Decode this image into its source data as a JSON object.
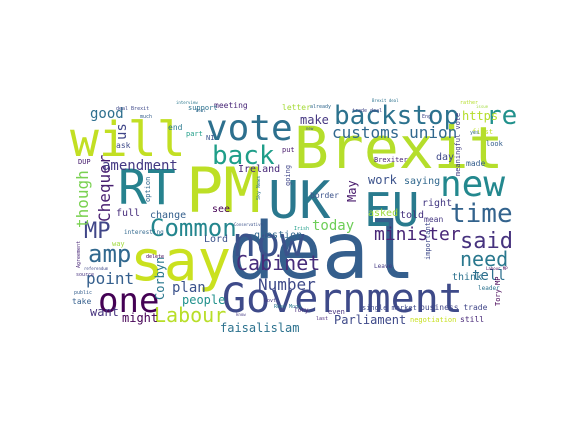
{
  "words": [
    {
      "text": "deal",
      "color": "#355f8d"
    },
    {
      "text": "PM",
      "color": "#bddf26"
    },
    {
      "text": "Brexit",
      "color": "#b5de2b"
    },
    {
      "text": "say",
      "color": "#cae11f"
    },
    {
      "text": "Government",
      "color": "#3e4a89"
    },
    {
      "text": "UK",
      "color": "#2a788e"
    },
    {
      "text": "RT",
      "color": "#26828e"
    },
    {
      "text": "will",
      "color": "#c2df23"
    },
    {
      "text": "now",
      "color": "#3b528b"
    },
    {
      "text": "EU",
      "color": "#297b8e"
    },
    {
      "text": "new",
      "color": "#23888e"
    },
    {
      "text": "vote",
      "color": "#2d708e"
    },
    {
      "text": "one",
      "color": "#440154"
    },
    {
      "text": "backstop",
      "color": "#2c728e"
    },
    {
      "text": "back",
      "color": "#1f9e89"
    },
    {
      "text": "Common",
      "color": "#24868e"
    },
    {
      "text": "time",
      "color": "#33638d"
    },
    {
      "text": "said",
      "color": "#46327e"
    },
    {
      "text": "amp",
      "color": "#31688e"
    },
    {
      "text": "MP",
      "color": "#404688"
    },
    {
      "text": "Cabinet",
      "color": "#472d7b"
    },
    {
      "text": "need",
      "color": "#2a788e"
    },
    {
      "text": "re",
      "color": "#21918c"
    },
    {
      "text": "Labour",
      "color": "#b8de29"
    },
    {
      "text": "customs union",
      "color": "#31688e"
    },
    {
      "text": "Chequer",
      "color": "#481f70"
    },
    {
      "text": "Number",
      "color": "#3e4989"
    },
    {
      "text": "minister",
      "color": "#482677"
    },
    {
      "text": "though",
      "color": "#7ad151"
    },
    {
      "text": "point",
      "color": "#355f8d"
    },
    {
      "text": "amendment",
      "color": "#443983"
    },
    {
      "text": "good",
      "color": "#2e6f8e"
    },
    {
      "text": "tell",
      "color": "#2d708e"
    },
    {
      "text": "today",
      "color": "#6ece58"
    },
    {
      "text": "plan",
      "color": "#3b528b"
    },
    {
      "text": "want",
      "color": "#46327e"
    },
    {
      "text": "might",
      "color": "#440154"
    },
    {
      "text": "people",
      "color": "#21918c"
    },
    {
      "text": "faisalislam",
      "color": "#2c728e"
    },
    {
      "text": "Parliament",
      "color": "#3e4989"
    },
    {
      "text": "us",
      "color": "#404688"
    },
    {
      "text": "Corbyn",
      "color": "#2a788e"
    },
    {
      "text": "May",
      "color": "#481a6c"
    },
    {
      "text": "make",
      "color": "#453781"
    },
    {
      "text": "Ireland",
      "color": "#482878"
    },
    {
      "text": "https",
      "color": "#b5de2b"
    },
    {
      "text": "work",
      "color": "#3b528b"
    },
    {
      "text": "saying",
      "color": "#31688e"
    },
    {
      "text": "think",
      "color": "#2c728e"
    },
    {
      "text": "day",
      "color": "#3e4989"
    },
    {
      "text": "full",
      "color": "#472d7b"
    },
    {
      "text": "change",
      "color": "#355f8d"
    },
    {
      "text": "question",
      "color": "#31688e"
    },
    {
      "text": "Lord",
      "color": "#3b528b"
    },
    {
      "text": "see",
      "color": "#440154"
    },
    {
      "text": "asked",
      "color": "#9fda3a"
    },
    {
      "text": "told",
      "color": "#46327e"
    },
    {
      "text": "right",
      "color": "#443983"
    },
    {
      "text": "business trade",
      "color": "#404688"
    },
    {
      "text": "single market",
      "color": "#3e4989"
    },
    {
      "text": "meeting",
      "color": "#482677"
    },
    {
      "text": "letter",
      "color": "#a5db36"
    },
    {
      "text": "end",
      "color": "#2a788e"
    },
    {
      "text": "mean",
      "color": "#453781"
    },
    {
      "text": "made",
      "color": "#355f8d"
    },
    {
      "text": "meaningful vote",
      "color": "#433e85"
    },
    {
      "text": "take",
      "color": "#355f8d"
    },
    {
      "text": "negotiation",
      "color": "#c8e020"
    },
    {
      "text": "still",
      "color": "#482878"
    },
    {
      "text": "border",
      "color": "#3b528b"
    },
    {
      "text": "going",
      "color": "#404688"
    },
    {
      "text": "option",
      "color": "#31688e"
    },
    {
      "text": "ask",
      "color": "#3e4989"
    },
    {
      "text": "DUP",
      "color": "#481f70"
    },
    {
      "text": "Tory MP",
      "color": "#440154"
    },
    {
      "text": "support",
      "color": "#2c728e"
    },
    {
      "text": "part",
      "color": "#1f9e89"
    },
    {
      "text": "look",
      "color": "#355f8d"
    },
    {
      "text": "even",
      "color": "#46327e"
    },
    {
      "text": "interesting",
      "color": "#31688e"
    },
    {
      "text": "Brexiter",
      "color": "#482677"
    },
    {
      "text": "important",
      "color": "#3e4989"
    },
    {
      "text": "Leave",
      "color": "#443983"
    },
    {
      "text": "Rees Mogg",
      "color": "#2a788e"
    },
    {
      "text": "NI",
      "color": "#3b528b"
    },
    {
      "text": "put",
      "color": "#481a6c"
    },
    {
      "text": "way",
      "color": "#9fda3a"
    },
    {
      "text": "first",
      "color": "#bddf26"
    },
    {
      "text": "already",
      "color": "#31688e"
    },
    {
      "text": "leader",
      "color": "#2c728e"
    },
    {
      "text": "trade deal",
      "color": "#404688"
    },
    {
      "text": "Tory",
      "color": "#472d7b"
    },
    {
      "text": "deal Brexit",
      "color": "#3e4989"
    },
    {
      "text": "much",
      "color": "#355f8d"
    },
    {
      "text": "Govt",
      "color": "#453781"
    },
    {
      "text": "delete",
      "color": "#440154"
    },
    {
      "text": "last",
      "color": "#482878"
    },
    {
      "text": "Brexit deal",
      "color": "#2c728e"
    },
    {
      "text": "Conservative",
      "color": "#3b528b"
    },
    {
      "text": "issue",
      "color": "#9fda3a"
    },
    {
      "text": "rather",
      "color": "#b5de2b"
    },
    {
      "text": "yes",
      "color": "#31688e"
    },
    {
      "text": "Eng",
      "color": "#404688"
    },
    {
      "text": "source",
      "color": "#46327e"
    },
    {
      "text": "public",
      "color": "#355f8d"
    },
    {
      "text": "referendum",
      "color": "#3e4989"
    },
    {
      "text": "Agreement",
      "color": "#482677"
    },
    {
      "text": "know",
      "color": "#443983"
    },
    {
      "text": "interview",
      "color": "#2a788e"
    },
    {
      "text": "Deal",
      "color": "#31688e"
    },
    {
      "text": "Irish",
      "color": "#1f9e89"
    },
    {
      "text": "new",
      "color": "#3b528b"
    },
    {
      "text": "Labour MP",
      "color": "#440154"
    },
    {
      "text": "Sky News",
      "color": "#2c728e"
    }
  ]
}
